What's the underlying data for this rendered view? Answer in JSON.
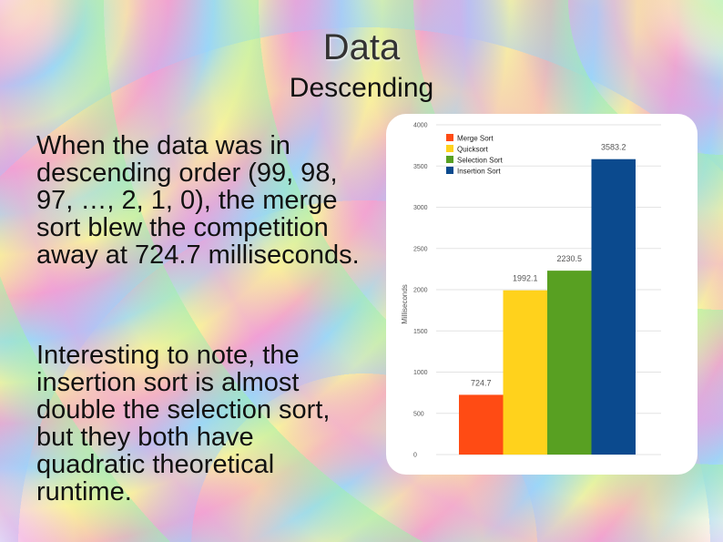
{
  "slide": {
    "title": "Data",
    "subtitle": "Descending",
    "paragraph1": "When the data was in descending order (99, 98, 97, …, 2, 1, 0), the merge sort blew the competition away at 724.7 milliseconds.",
    "paragraph2": "Interesting to note, the insertion sort is almost double the selection sort, but they both have quadratic theoretical runtime."
  },
  "chart_data": {
    "type": "bar",
    "categories": [
      "Merge Sort",
      "Quicksort",
      "Selection Sort",
      "Insertion Sort"
    ],
    "values": [
      724.7,
      1992.1,
      2230.5,
      3583.2
    ],
    "value_labels": [
      "724.7",
      "1992.1",
      "2230.5",
      "3583.2"
    ],
    "colors": [
      "#ff4b14",
      "#ffd21c",
      "#58a022",
      "#0b4a8e"
    ],
    "ylabel": "Milliseconds",
    "ylim": [
      0,
      4000
    ],
    "yticks": [
      0,
      500,
      1000,
      1500,
      2000,
      2500,
      3000,
      3500,
      4000
    ],
    "grid": true,
    "legend_position": "top-left"
  }
}
